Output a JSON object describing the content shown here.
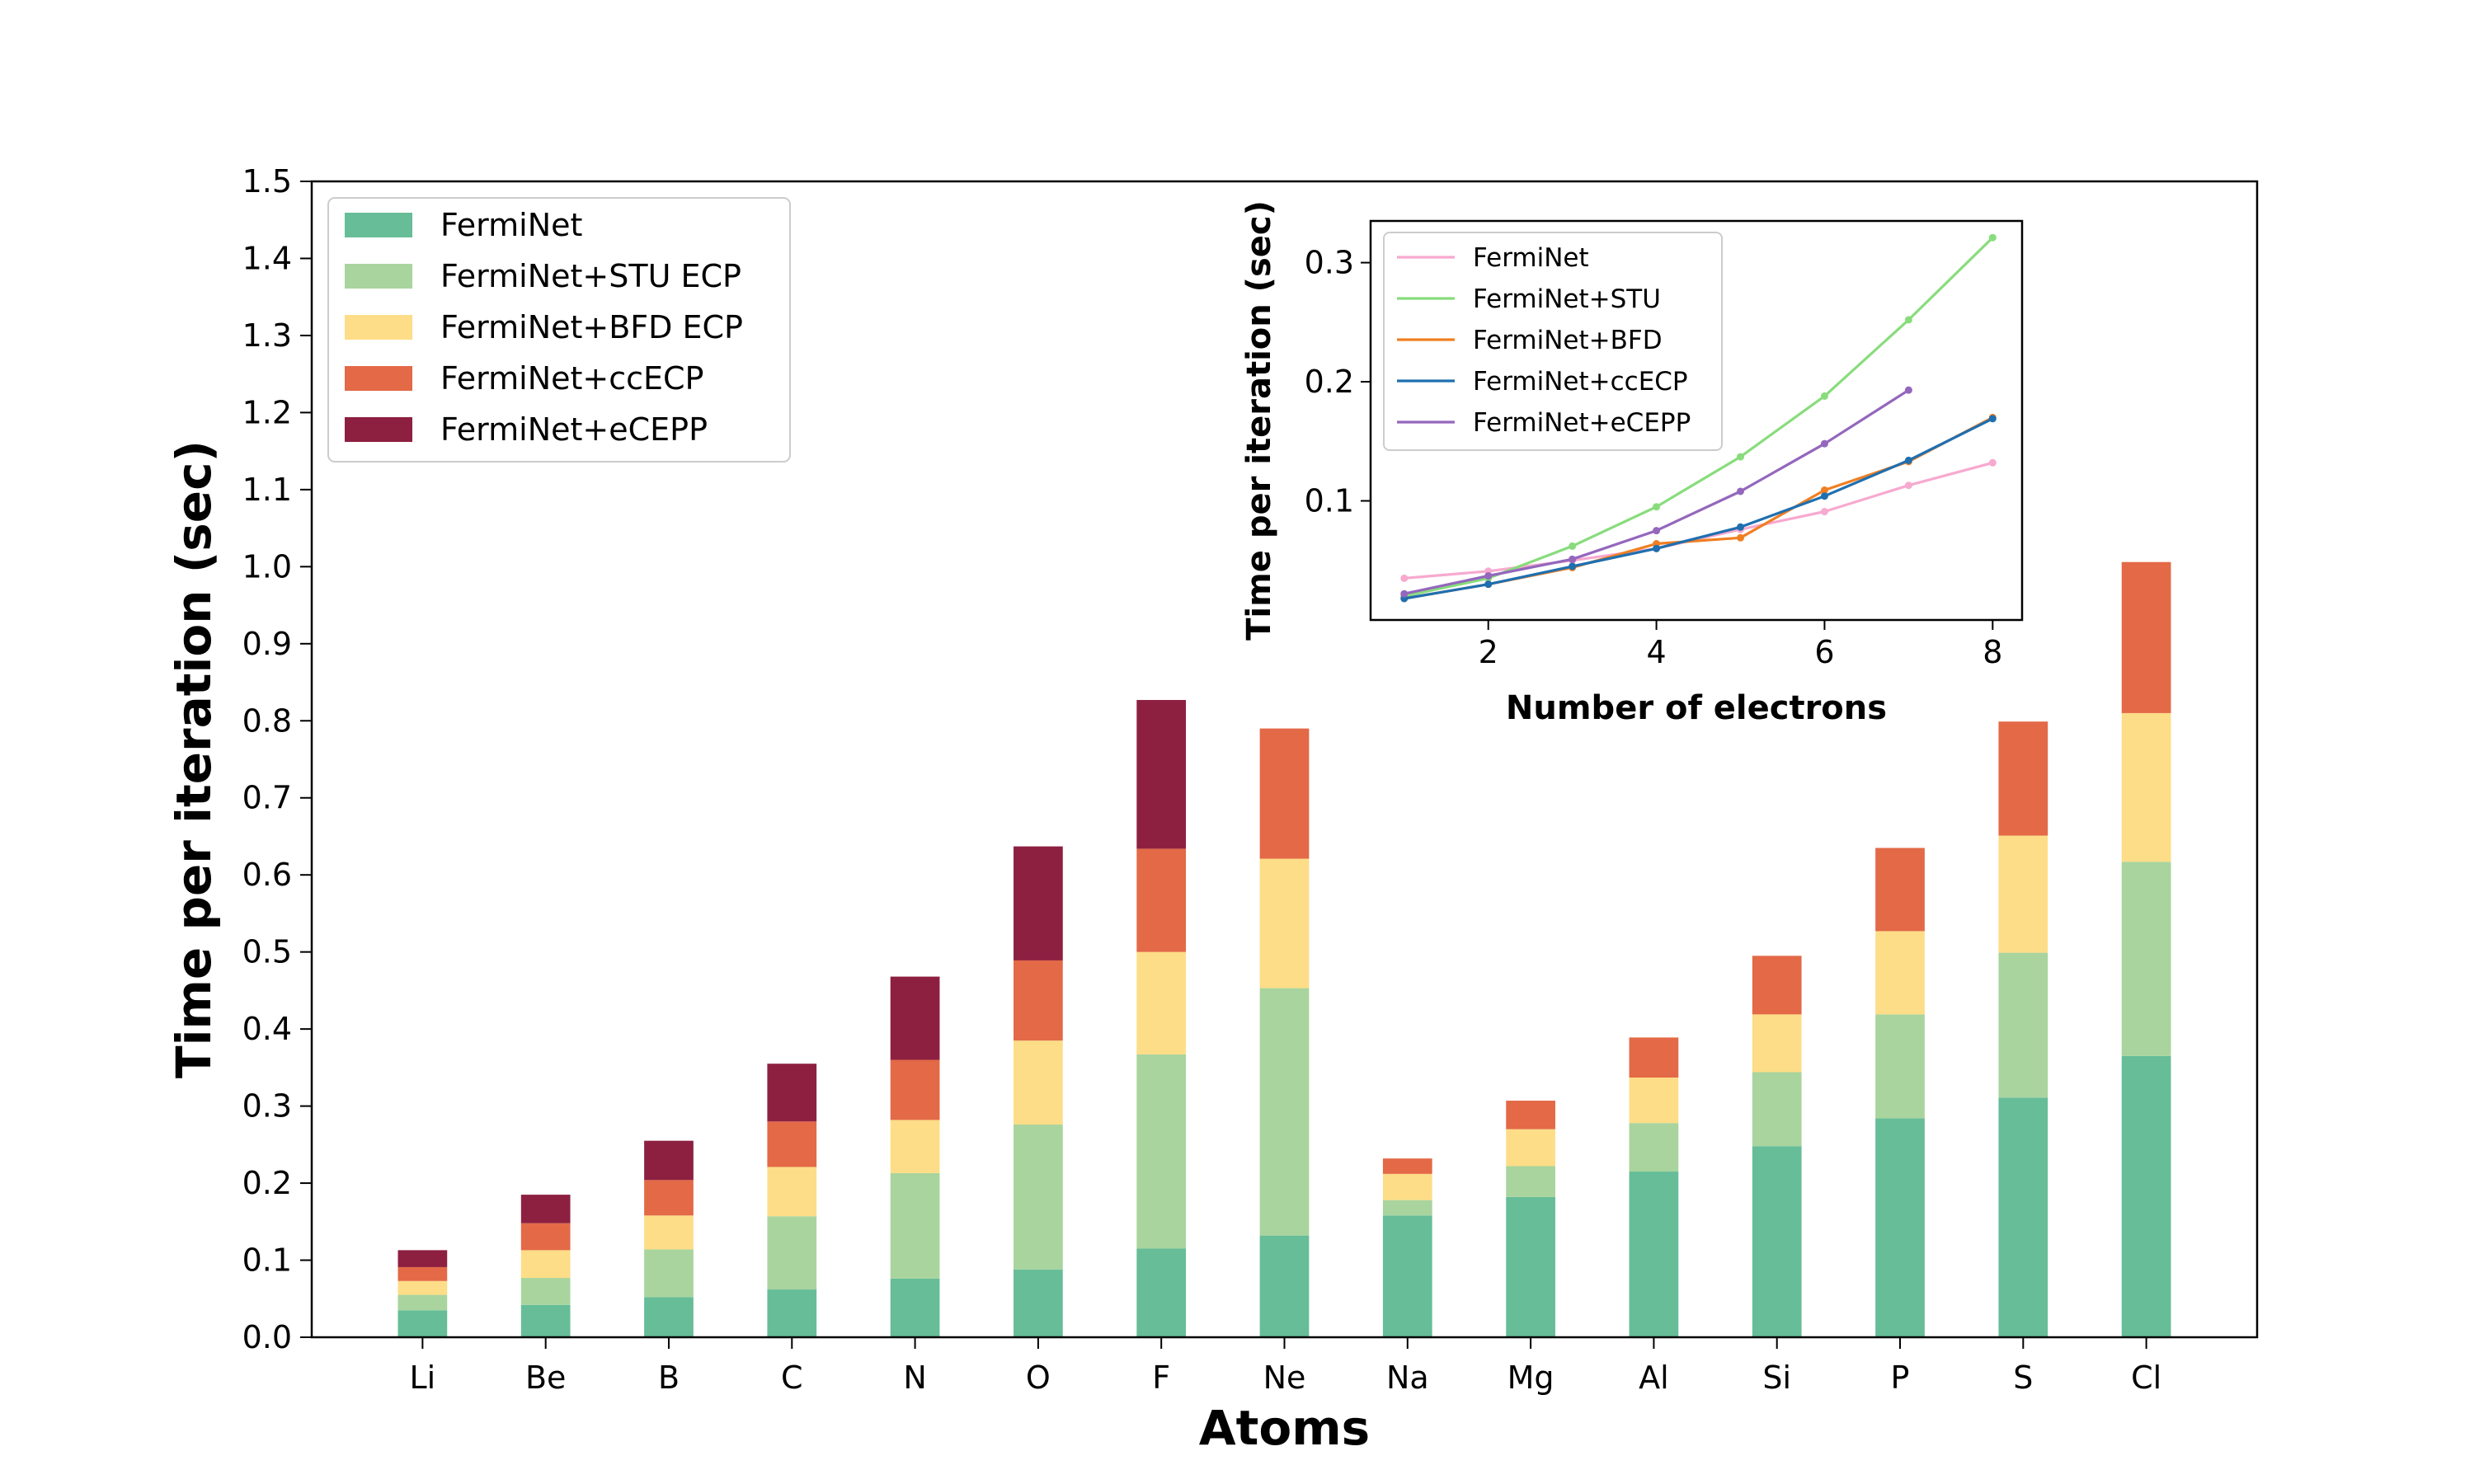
{
  "chart_data": [
    {
      "type": "bar",
      "stacked": true,
      "title": "",
      "xlabel": "Atoms",
      "ylabel": "Time per iteration (sec)",
      "ylim": [
        0,
        1.5
      ],
      "yticks": [
        "0.0",
        "0.1",
        "0.2",
        "0.3",
        "0.4",
        "0.5",
        "0.6",
        "0.7",
        "0.8",
        "0.9",
        "1.0",
        "1.1",
        "1.2",
        "1.3",
        "1.4",
        "1.5"
      ],
      "categories": [
        "Li",
        "Be",
        "B",
        "C",
        "N",
        "O",
        "F",
        "Ne",
        "Na",
        "Mg",
        "Al",
        "Si",
        "P",
        "S",
        "Cl"
      ],
      "legend_position": "top-left",
      "series": [
        {
          "name": "FermiNet",
          "color": "#66bd98",
          "values": [
            0.035,
            0.042,
            0.052,
            0.062,
            0.076,
            0.088,
            0.115,
            0.132,
            0.158,
            0.182,
            0.215,
            0.248,
            0.284,
            0.311,
            0.365
          ]
        },
        {
          "name": "FermiNet+STU ECP",
          "color": "#a9d49e",
          "values": [
            0.02,
            0.035,
            0.062,
            0.095,
            0.137,
            0.188,
            0.252,
            0.321,
            0.02,
            0.04,
            0.063,
            0.096,
            0.135,
            0.188,
            0.252
          ]
        },
        {
          "name": "FermiNet+BFD ECP",
          "color": "#fddd87",
          "values": [
            0.018,
            0.036,
            0.044,
            0.064,
            0.069,
            0.109,
            0.133,
            0.168,
            0.034,
            0.048,
            0.059,
            0.075,
            0.108,
            0.152,
            0.193
          ]
        },
        {
          "name": "FermiNet+ccECP",
          "color": "#e36947",
          "values": [
            0.018,
            0.035,
            0.046,
            0.059,
            0.078,
            0.104,
            0.134,
            0.169,
            0.02,
            0.037,
            0.052,
            0.076,
            0.108,
            0.148,
            0.196
          ]
        },
        {
          "name": "FermiNet+eCEPP",
          "color": "#8d2041",
          "values": [
            0.022,
            0.037,
            0.051,
            0.075,
            0.108,
            0.148,
            0.193,
            0,
            0,
            0,
            0,
            0,
            0,
            0,
            0
          ]
        }
      ]
    },
    {
      "type": "line",
      "title": "",
      "xlabel": "Number of electrons",
      "ylabel": "Time per iteration (sec)",
      "xlim": [
        0.6,
        8.35
      ],
      "ylim": [
        0.0,
        0.335
      ],
      "xticks": [
        "2",
        "4",
        "6",
        "8"
      ],
      "yticks": [
        "0.1",
        "0.2",
        "0.3"
      ],
      "legend_position": "top-left",
      "series": [
        {
          "name": "FermiNet",
          "color": "#f7a9cf",
          "x": [
            1,
            2,
            3,
            4,
            5,
            6,
            7,
            8
          ],
          "y": [
            0.035,
            0.041,
            0.05,
            0.06,
            0.076,
            0.091,
            0.113,
            0.132
          ]
        },
        {
          "name": "FermiNet+STU",
          "color": "#88dc7c",
          "x": [
            1,
            2,
            3,
            4,
            5,
            6,
            7,
            8
          ],
          "y": [
            0.02,
            0.035,
            0.062,
            0.095,
            0.137,
            0.188,
            0.252,
            0.321
          ]
        },
        {
          "name": "FermiNet+BFD",
          "color": "#f07f22",
          "x": [
            1,
            2,
            3,
            4,
            5,
            6,
            7,
            8
          ],
          "y": [
            0.018,
            0.03,
            0.044,
            0.064,
            0.069,
            0.109,
            0.133,
            0.17
          ]
        },
        {
          "name": "FermiNet+ccECP",
          "color": "#1f6faf",
          "x": [
            1,
            2,
            3,
            4,
            5,
            6,
            7,
            8
          ],
          "y": [
            0.018,
            0.03,
            0.045,
            0.06,
            0.078,
            0.104,
            0.134,
            0.169
          ]
        },
        {
          "name": "FermiNet+eCEPP",
          "color": "#9467bd",
          "x": [
            1,
            2,
            3,
            4,
            5,
            6,
            7
          ],
          "y": [
            0.022,
            0.037,
            0.051,
            0.075,
            0.108,
            0.148,
            0.193
          ]
        }
      ]
    }
  ]
}
